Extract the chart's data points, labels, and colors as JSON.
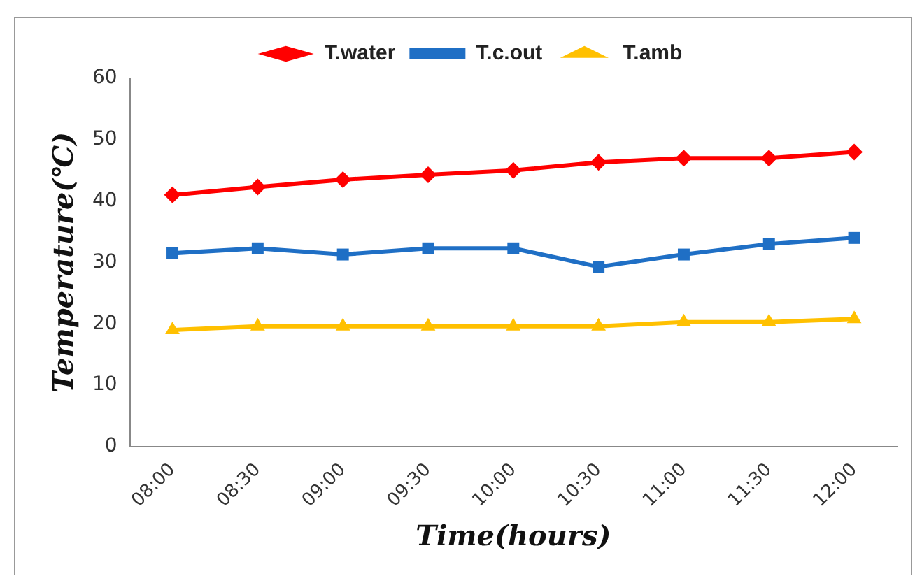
{
  "chart_data": {
    "type": "line",
    "xlabel": "Time(hours)",
    "ylabel": "Temperature(℃)",
    "categories": [
      "08:00",
      "08:30",
      "09:00",
      "09:30",
      "10:00",
      "10:30",
      "11:00",
      "11:30",
      "12:00"
    ],
    "series": [
      {
        "name": "T.water",
        "color": "#ff0000",
        "marker": "diamond",
        "values": [
          41,
          42.3,
          43.5,
          44.3,
          45,
          46.3,
          47,
          47,
          48
        ]
      },
      {
        "name": "T.c.out",
        "color": "#1f6fc5",
        "marker": "square",
        "values": [
          31.5,
          32.3,
          31.3,
          32.3,
          32.3,
          29.3,
          31.3,
          33,
          34
        ]
      },
      {
        "name": "T.amb",
        "color": "#ffc000",
        "marker": "triangle",
        "values": [
          19,
          19.6,
          19.6,
          19.6,
          19.6,
          19.6,
          20.3,
          20.3,
          20.8
        ]
      }
    ],
    "ylim": [
      0,
      60
    ],
    "yticks": [
      0,
      10,
      20,
      30,
      40,
      50,
      60
    ],
    "grid": false,
    "legend": "top"
  }
}
